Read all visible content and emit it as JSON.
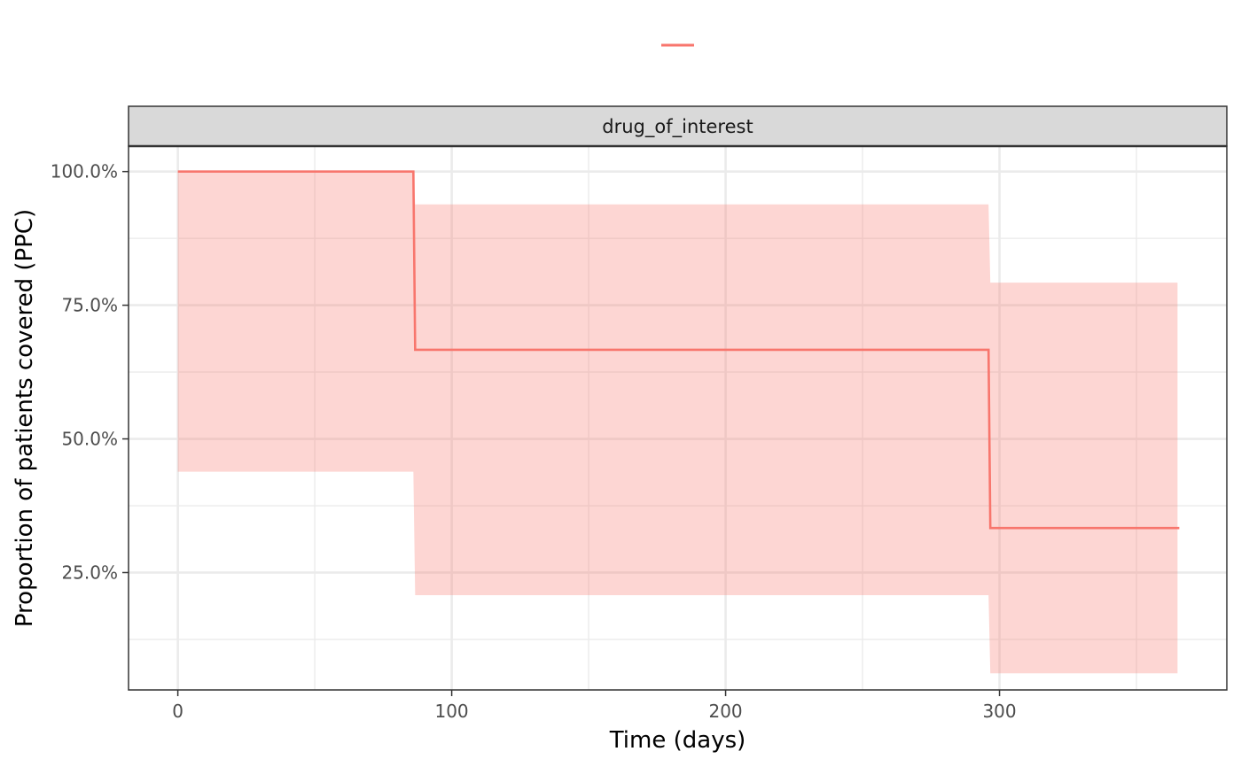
{
  "chart_data": {
    "type": "line",
    "title": "",
    "facet_label": "drug_of_interest",
    "xlabel": "Time (days)",
    "ylabel": "Proportion of patients covered (PPC)",
    "xlim": [
      -18,
      383
    ],
    "ylim": [
      0.0305,
      1.0475
    ],
    "x_ticks": [
      0,
      100,
      200,
      300
    ],
    "x_tick_labels": [
      "0",
      "100",
      "200",
      "300"
    ],
    "y_ticks": [
      0.25,
      0.5,
      0.75,
      1.0
    ],
    "y_tick_labels": [
      "25.0%",
      "50.0%",
      "75.0%",
      "100.0%"
    ],
    "grid": true,
    "legend": {
      "position": "top",
      "entries": [
        ""
      ]
    },
    "colors": {
      "line": "#F8766D",
      "ribbon": "#F8766D"
    },
    "series": [
      {
        "type": "step",
        "x": [
          0,
          86,
          296,
          365
        ],
        "y": [
          1.0,
          0.6667,
          0.3333,
          0.3333
        ],
        "lower": [
          0.4385,
          0.2077,
          0.0615,
          0.0615
        ],
        "upper": [
          1.0,
          0.9385,
          0.7923,
          0.7923
        ]
      }
    ]
  }
}
